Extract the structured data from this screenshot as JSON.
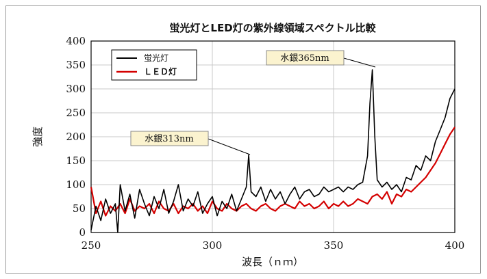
{
  "chart_data": {
    "type": "line",
    "title": "蛍光灯とLED灯の紫外線領域スペクトル比較",
    "xlabel": "波長（ｎｍ）",
    "ylabel": "強度",
    "xlim": [
      250,
      400
    ],
    "ylim": [
      0,
      400
    ],
    "xticks": [
      "250",
      "300",
      "350",
      "400"
    ],
    "yticks": [
      "0",
      "50",
      "100",
      "150",
      "200",
      "250",
      "300",
      "350",
      "400"
    ],
    "grid": true,
    "legend_position": "top-left",
    "series": [
      {
        "name": "蛍光灯",
        "color": "#000000",
        "x": [
          250,
          252,
          254,
          256,
          258,
          260,
          261,
          262,
          264,
          266,
          268,
          270,
          272,
          274,
          276,
          278,
          280,
          282,
          284,
          286,
          288,
          290,
          292,
          294,
          296,
          298,
          300,
          302,
          304,
          306,
          308,
          310,
          312,
          314,
          315,
          316,
          318,
          320,
          322,
          324,
          326,
          328,
          330,
          332,
          334,
          336,
          338,
          340,
          342,
          344,
          346,
          348,
          350,
          352,
          354,
          356,
          358,
          360,
          362,
          364,
          365,
          366,
          367,
          368,
          370,
          372,
          374,
          376,
          378,
          380,
          382,
          384,
          386,
          388,
          390,
          392,
          394,
          396,
          398,
          400
        ],
        "y": [
          5,
          55,
          25,
          70,
          40,
          60,
          0,
          100,
          45,
          80,
          30,
          90,
          60,
          35,
          75,
          50,
          90,
          40,
          65,
          100,
          45,
          70,
          55,
          85,
          40,
          60,
          75,
          35,
          65,
          50,
          80,
          45,
          70,
          95,
          162,
          85,
          75,
          95,
          65,
          90,
          70,
          85,
          60,
          80,
          95,
          70,
          85,
          90,
          75,
          80,
          95,
          85,
          90,
          95,
          85,
          95,
          90,
          100,
          105,
          160,
          270,
          340,
          200,
          110,
          95,
          105,
          90,
          100,
          85,
          115,
          110,
          140,
          130,
          160,
          150,
          190,
          215,
          240,
          280,
          300
        ]
      },
      {
        "name": "ＬＥＤ灯",
        "color": "#d40000",
        "x": [
          250,
          252,
          254,
          256,
          258,
          260,
          262,
          264,
          266,
          268,
          270,
          272,
          274,
          276,
          278,
          280,
          282,
          284,
          286,
          288,
          290,
          292,
          294,
          296,
          298,
          300,
          302,
          304,
          306,
          308,
          310,
          312,
          314,
          316,
          318,
          320,
          322,
          324,
          326,
          328,
          330,
          332,
          334,
          336,
          338,
          340,
          342,
          344,
          346,
          348,
          350,
          352,
          354,
          356,
          358,
          360,
          362,
          364,
          366,
          368,
          370,
          372,
          374,
          376,
          378,
          380,
          382,
          384,
          386,
          388,
          390,
          392,
          394,
          396,
          398,
          400
        ],
        "y": [
          95,
          40,
          65,
          35,
          55,
          45,
          60,
          40,
          70,
          45,
          55,
          50,
          60,
          40,
          65,
          50,
          45,
          60,
          40,
          55,
          50,
          60,
          45,
          55,
          40,
          65,
          50,
          45,
          60,
          50,
          45,
          55,
          60,
          50,
          45,
          55,
          60,
          50,
          45,
          55,
          60,
          55,
          50,
          65,
          55,
          60,
          50,
          55,
          65,
          50,
          60,
          55,
          65,
          55,
          60,
          70,
          65,
          60,
          75,
          80,
          70,
          85,
          60,
          80,
          75,
          90,
          85,
          95,
          105,
          115,
          130,
          145,
          165,
          185,
          205,
          220
        ]
      }
    ],
    "annotations": [
      {
        "text": "水銀313nm",
        "x": 315,
        "y": 162
      },
      {
        "text": "水銀365nm",
        "x": 367,
        "y": 340
      }
    ]
  }
}
